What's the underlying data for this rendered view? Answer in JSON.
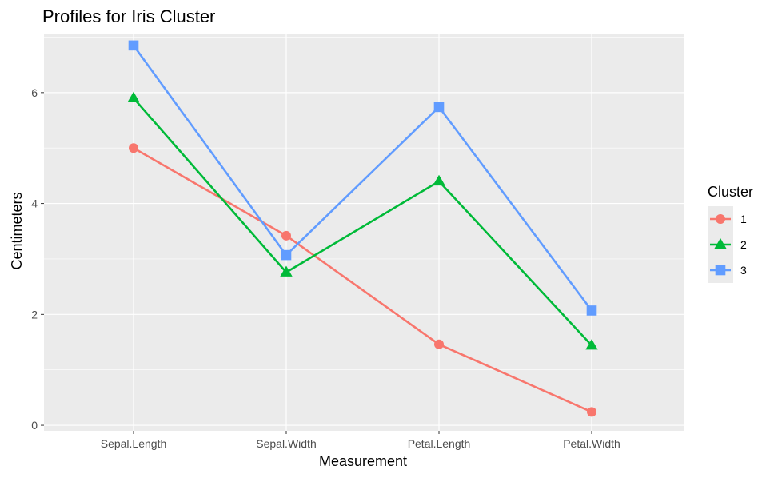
{
  "chart_data": {
    "type": "line",
    "title": "Profiles for Iris Cluster",
    "xlabel": "Measurement",
    "ylabel": "Centimeters",
    "categories": [
      "Sepal.Length",
      "Sepal.Width",
      "Petal.Length",
      "Petal.Width"
    ],
    "y_ticks": [
      "0",
      "2",
      "4",
      "6"
    ],
    "ylim": [
      -0.1,
      7.05
    ],
    "grid": true,
    "legend": {
      "title": "Cluster",
      "placement": "right"
    },
    "series": [
      {
        "name": "1",
        "values": [
          5.0,
          3.42,
          1.46,
          0.24
        ],
        "color": "#F8766D",
        "marker": "circle"
      },
      {
        "name": "2",
        "values": [
          5.9,
          2.76,
          4.4,
          1.44
        ],
        "color": "#00BA38",
        "marker": "triangle"
      },
      {
        "name": "3",
        "values": [
          6.85,
          3.07,
          5.74,
          2.07
        ],
        "color": "#619CFF",
        "marker": "square"
      }
    ]
  }
}
